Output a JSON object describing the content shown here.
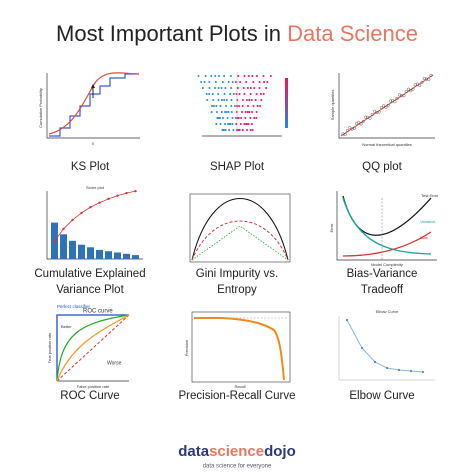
{
  "header": {
    "title": "Most Important Plots in",
    "highlight": "Data Science"
  },
  "plots": [
    {
      "caption": [
        "KS Plot"
      ],
      "labels": [
        "Cumulative Probability",
        "X"
      ]
    },
    {
      "caption": [
        "SHAP Plot"
      ],
      "labels": []
    },
    {
      "caption": [
        "QQ plot"
      ],
      "labels": [
        "Normal theoretical quantiles",
        "Sample quantiles"
      ]
    },
    {
      "caption": [
        "Cumulative Explained",
        "Variance Plot"
      ],
      "labels": [
        "Scree plot"
      ]
    },
    {
      "caption": [
        "Gini Impurity vs.",
        "Entropy"
      ],
      "labels": []
    },
    {
      "caption": [
        "Bias-Variance",
        "Tradeoff"
      ],
      "labels": [
        "Test Error",
        "Variance",
        "Bias",
        "Error",
        "Model Complexity"
      ]
    },
    {
      "caption": [
        "ROC Curve"
      ],
      "labels": [
        "ROC curve",
        "Perfect classifier",
        "Better",
        "Worse",
        "True positive rate",
        "False positive rate"
      ]
    },
    {
      "caption": [
        "Precision-Recall Curve"
      ],
      "labels": [
        "Recall",
        "Precision"
      ]
    },
    {
      "caption": [
        "Elbow Curve"
      ],
      "labels": [
        "Elbow Curve"
      ]
    }
  ],
  "footer": {
    "logo": [
      "data",
      "science",
      "dojo"
    ],
    "tagline": "data science for everyone"
  }
}
